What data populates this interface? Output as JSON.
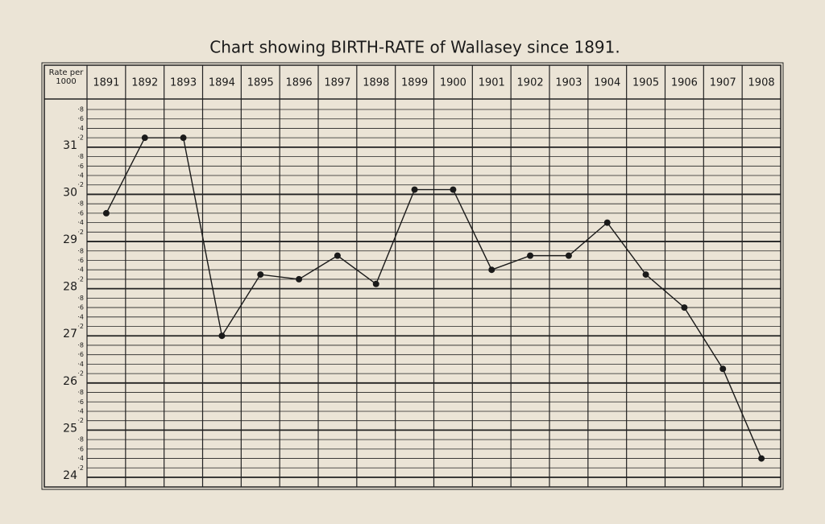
{
  "chart_data": {
    "type": "line",
    "title": "Chart showing BIRTH-RATE of Wallasey since 1891.",
    "y_label": "Rate per 1000",
    "categories": [
      "1891",
      "1892",
      "1893",
      "1894",
      "1895",
      "1896",
      "1897",
      "1898",
      "1899",
      "1900",
      "1901",
      "1902",
      "1903",
      "1904",
      "1905",
      "1906",
      "1907",
      "1908"
    ],
    "values": [
      29.6,
      31.2,
      31.2,
      27.0,
      28.3,
      28.2,
      28.7,
      28.1,
      30.1,
      30.1,
      28.4,
      28.7,
      28.7,
      29.4,
      28.3,
      27.6,
      26.3,
      24.4
    ],
    "color": "#1a1a1a",
    "ylim": [
      24,
      31.8
    ],
    "yticks": [
      24,
      {
        "value": 24.2,
        "label": "·2"
      },
      {
        "value": 24.4,
        "label": "·4"
      },
      {
        "value": 24.6,
        "label": "·6"
      },
      {
        "value": 24.8,
        "label": "·8"
      },
      25,
      {
        "value": 25.2,
        "label": "·2"
      },
      {
        "value": 25.4,
        "label": "·4"
      },
      {
        "value": 25.6,
        "label": "·6"
      },
      {
        "value": 25.8,
        "label": "·8"
      },
      26,
      {
        "value": 26.2,
        "label": "·2"
      },
      {
        "value": 26.4,
        "label": "·4"
      },
      {
        "value": 26.6,
        "label": "·6"
      },
      {
        "value": 26.8,
        "label": "·8"
      },
      27,
      {
        "value": 27.2,
        "label": "·2"
      },
      {
        "value": 27.4,
        "label": "·4"
      },
      {
        "value": 27.6,
        "label": "·6"
      },
      {
        "value": 27.8,
        "label": "·8"
      },
      28,
      {
        "value": 28.2,
        "label": "·2"
      },
      {
        "value": 28.4,
        "label": "·4"
      },
      {
        "value": 28.6,
        "label": "·6"
      },
      {
        "value": 28.8,
        "label": "·8"
      },
      29,
      {
        "value": 29.2,
        "label": "·2"
      },
      {
        "value": 29.4,
        "label": "·4"
      },
      {
        "value": 29.6,
        "label": "·6"
      },
      {
        "value": 29.8,
        "label": "·8"
      },
      30,
      {
        "value": 30.2,
        "label": "·2"
      },
      {
        "value": 30.4,
        "label": "·4"
      },
      {
        "value": 30.6,
        "label": "·6"
      },
      {
        "value": 30.8,
        "label": "·8"
      },
      31,
      {
        "value": 31.2,
        "label": "·2"
      },
      {
        "value": 31.4,
        "label": "·4"
      },
      {
        "value": 31.6,
        "label": "·6"
      },
      {
        "value": 31.8,
        "label": "·8"
      }
    ],
    "grid": true
  }
}
